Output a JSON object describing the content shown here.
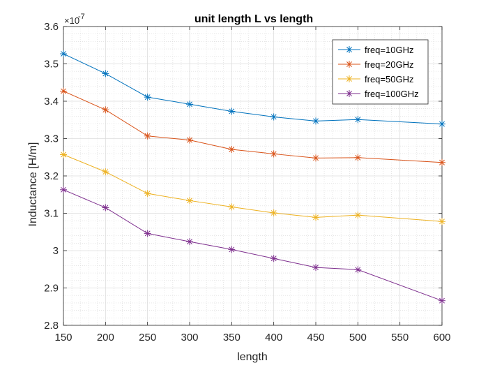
{
  "chart_data": {
    "type": "line",
    "title": "unit length L vs length",
    "xlabel": "length",
    "ylabel": "Inductance [H/m]",
    "y_exponent_base": "×10",
    "y_exponent_power": "-7",
    "y_scale_factor": 1e-07,
    "x": [
      150,
      200,
      250,
      300,
      350,
      400,
      450,
      500,
      550,
      600
    ],
    "xlim": [
      150,
      600
    ],
    "ylim": [
      2.8,
      3.6
    ],
    "xticks": [
      150,
      200,
      250,
      300,
      350,
      400,
      450,
      500,
      550,
      600
    ],
    "yticks": [
      2.8,
      2.9,
      3.0,
      3.1,
      3.2,
      3.3,
      3.4,
      3.5,
      3.6
    ],
    "ytick_labels": [
      "2.8",
      "2.9",
      "3",
      "3.1",
      "3.2",
      "3.3",
      "3.4",
      "3.5",
      "3.6"
    ],
    "grid": true,
    "minor_grid": true,
    "legend_position": "top-right",
    "marker": "asterisk",
    "series": [
      {
        "name": "freq=10GHz",
        "color": "#0072BD",
        "x": [
          150,
          200,
          250,
          300,
          350,
          400,
          450,
          500,
          600
        ],
        "values": [
          3.527,
          3.474,
          3.411,
          3.392,
          3.373,
          3.358,
          3.347,
          3.351,
          3.339
        ]
      },
      {
        "name": "freq=20GHz",
        "color": "#D95319",
        "x": [
          150,
          200,
          250,
          300,
          350,
          400,
          450,
          500,
          600
        ],
        "values": [
          3.427,
          3.377,
          3.307,
          3.296,
          3.271,
          3.259,
          3.248,
          3.249,
          3.236
        ]
      },
      {
        "name": "freq=50GHz",
        "color": "#EDB120",
        "x": [
          150,
          200,
          250,
          300,
          350,
          400,
          450,
          500,
          600
        ],
        "values": [
          3.257,
          3.211,
          3.153,
          3.134,
          3.117,
          3.101,
          3.089,
          3.095,
          3.078
        ]
      },
      {
        "name": "freq=100GHz",
        "color": "#7E2F8E",
        "x": [
          150,
          200,
          250,
          300,
          350,
          400,
          450,
          500,
          600
        ],
        "values": [
          3.163,
          3.115,
          3.046,
          3.024,
          3.003,
          2.979,
          2.955,
          2.949,
          2.866
        ]
      }
    ]
  }
}
